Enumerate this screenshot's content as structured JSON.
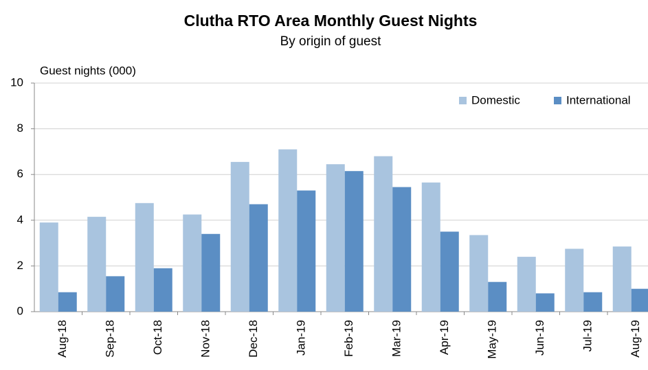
{
  "chart_data": {
    "type": "bar",
    "title": "Clutha RTO Area Monthly Guest Nights",
    "subtitle": "By origin  of guest",
    "y_label": "Guest nights (000)",
    "categories": [
      "Aug-18",
      "Sep-18",
      "Oct-18",
      "Nov-18",
      "Dec-18",
      "Jan-19",
      "Feb-19",
      "Mar-19",
      "Apr-19",
      "May-19",
      "Jun-19",
      "Jul-19",
      "Aug-19"
    ],
    "series": [
      {
        "name": "Domestic",
        "color": "#a9c4df",
        "values": [
          3.9,
          4.15,
          4.75,
          4.25,
          6.55,
          7.1,
          6.45,
          6.8,
          5.65,
          3.35,
          2.4,
          2.75,
          2.85
        ]
      },
      {
        "name": "International",
        "color": "#5b8ec4",
        "values": [
          0.85,
          1.55,
          1.9,
          3.4,
          4.7,
          5.3,
          6.15,
          5.45,
          3.5,
          1.3,
          0.8,
          0.85,
          1.0
        ]
      }
    ],
    "ylim": [
      0,
      10
    ],
    "yticks": [
      0,
      2,
      4,
      6,
      8,
      10
    ],
    "grid": true,
    "legend": "upper right"
  }
}
